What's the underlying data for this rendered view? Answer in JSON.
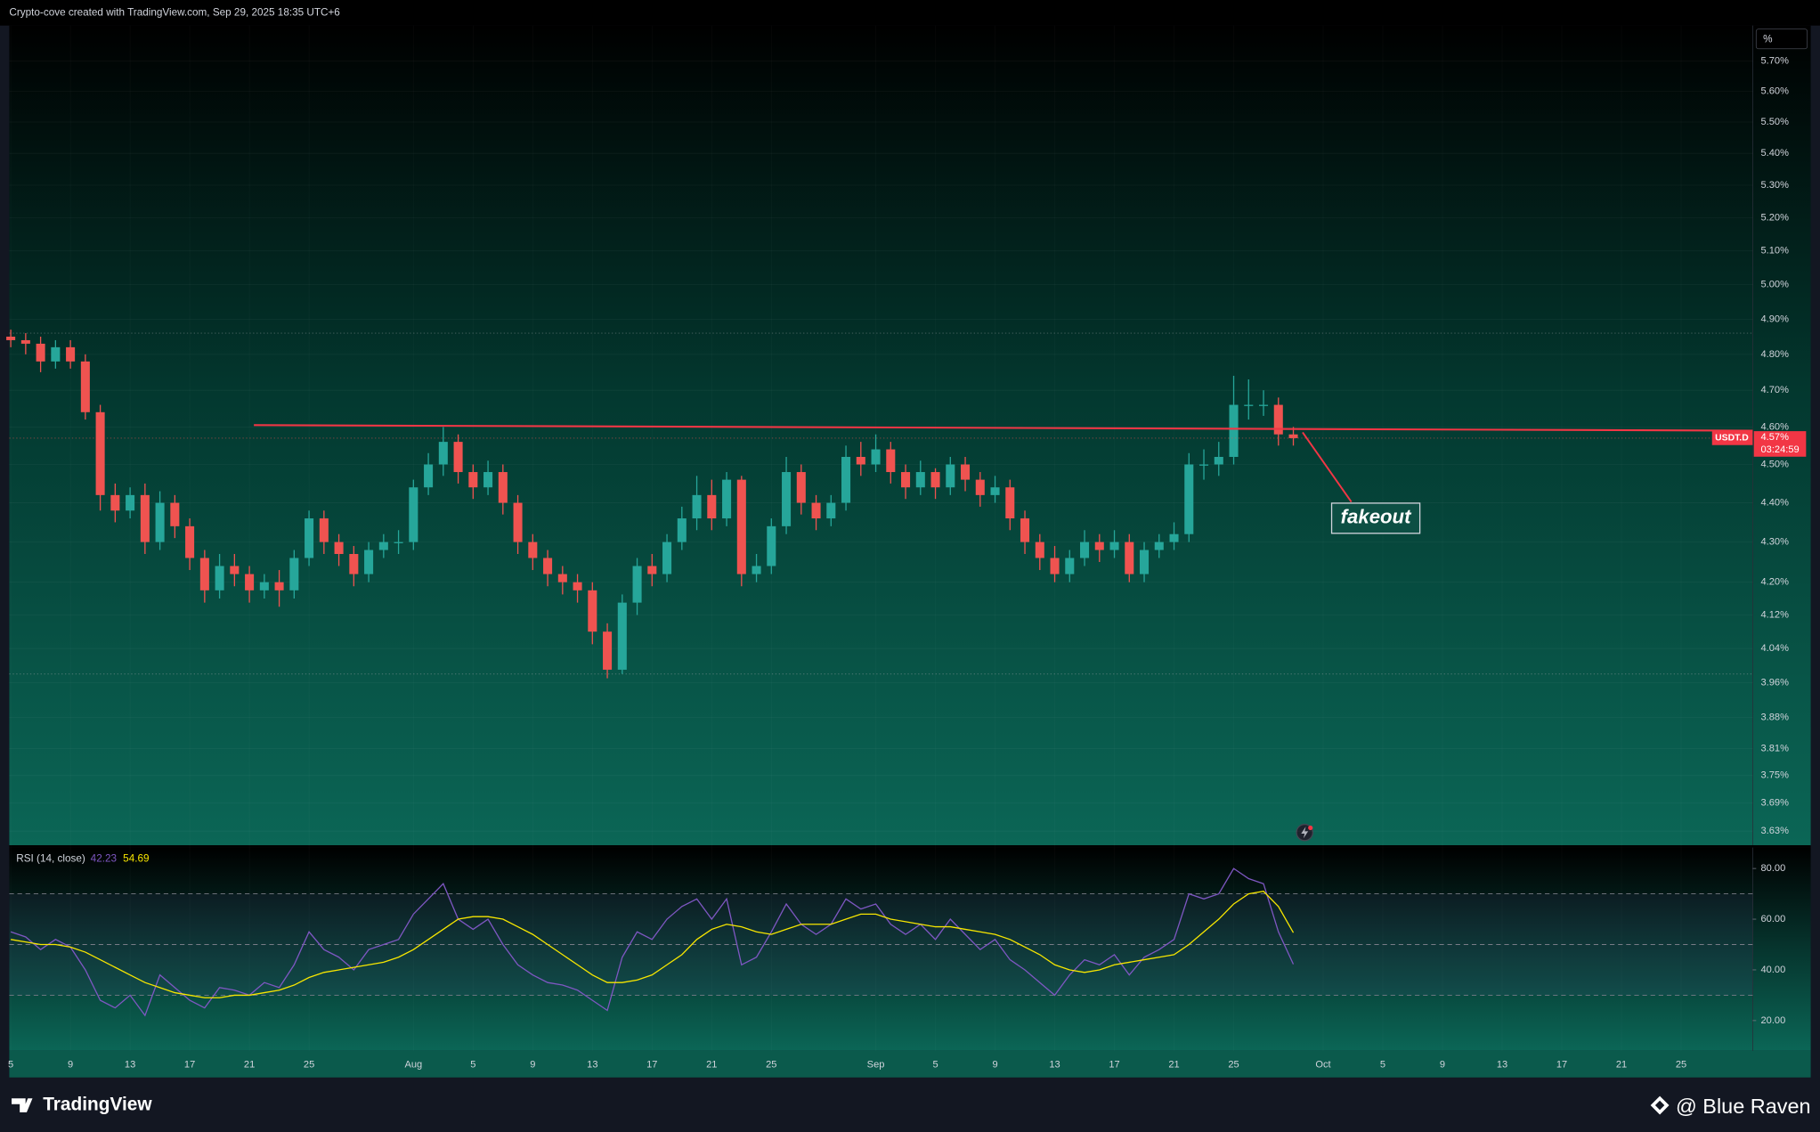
{
  "header": "Crypto-cove created with TradingView.com, Sep 29, 2025 18:35 UTC+6",
  "brand": "TradingView",
  "watermark": "@ Blue Raven",
  "chart_data": [
    {
      "type": "candlestick",
      "unit": "%",
      "symbol": "USDT.D",
      "last_price": {
        "value": 4.57,
        "label": "4.57%"
      },
      "countdown": "03:24:59",
      "annotation": "fakeout",
      "up_color": "#26a69a",
      "down_color": "#ef5350",
      "log_scale": true,
      "grid": true,
      "xlim": [
        -0.1,
        116.8
      ],
      "xticks": [
        {
          "value": 0,
          "label": "5"
        },
        {
          "value": 4,
          "label": "9"
        },
        {
          "value": 8,
          "label": "13"
        },
        {
          "value": 12,
          "label": "17"
        },
        {
          "value": 16,
          "label": "21"
        },
        {
          "value": 20,
          "label": "25"
        },
        {
          "value": 27,
          "label": "Aug"
        },
        {
          "value": 31,
          "label": "5"
        },
        {
          "value": 35,
          "label": "9"
        },
        {
          "value": 39,
          "label": "13"
        },
        {
          "value": 43,
          "label": "17"
        },
        {
          "value": 47,
          "label": "21"
        },
        {
          "value": 51,
          "label": "25"
        },
        {
          "value": 58,
          "label": "Sep"
        },
        {
          "value": 62,
          "label": "5"
        },
        {
          "value": 66,
          "label": "9"
        },
        {
          "value": 70,
          "label": "13"
        },
        {
          "value": 74,
          "label": "17"
        },
        {
          "value": 78,
          "label": "21"
        },
        {
          "value": 82,
          "label": "25"
        },
        {
          "value": 88,
          "label": "Oct"
        },
        {
          "value": 92,
          "label": "5"
        },
        {
          "value": 96,
          "label": "9"
        },
        {
          "value": 100,
          "label": "13"
        },
        {
          "value": 104,
          "label": "17"
        },
        {
          "value": 108,
          "label": "21"
        },
        {
          "value": 112,
          "label": "25"
        }
      ],
      "ylim": [
        3.6,
        5.82
      ],
      "yticks": [
        {
          "value": 3.63,
          "label": "3.63%"
        },
        {
          "value": 3.69,
          "label": "3.69%"
        },
        {
          "value": 3.75,
          "label": "3.75%"
        },
        {
          "value": 3.81,
          "label": "3.81%"
        },
        {
          "value": 3.88,
          "label": "3.88%"
        },
        {
          "value": 3.96,
          "label": "3.96%"
        },
        {
          "value": 4.04,
          "label": "4.04%"
        },
        {
          "value": 4.12,
          "label": "4.12%"
        },
        {
          "value": 4.2,
          "label": "4.20%"
        },
        {
          "value": 4.3,
          "label": "4.30%"
        },
        {
          "value": 4.4,
          "label": "4.40%"
        },
        {
          "value": 4.5,
          "label": "4.50%"
        },
        {
          "value": 4.6,
          "label": "4.60%"
        },
        {
          "value": 4.7,
          "label": "4.70%"
        },
        {
          "value": 4.8,
          "label": "4.80%"
        },
        {
          "value": 4.9,
          "label": "4.90%"
        },
        {
          "value": 5.0,
          "label": "5.00%"
        },
        {
          "value": 5.1,
          "label": "5.10%"
        },
        {
          "value": 5.2,
          "label": "5.20%"
        },
        {
          "value": 5.3,
          "label": "5.30%"
        },
        {
          "value": 5.4,
          "label": "5.40%"
        },
        {
          "value": 5.5,
          "label": "5.50%"
        },
        {
          "value": 5.6,
          "label": "5.60%"
        },
        {
          "value": 5.7,
          "label": "5.70%"
        }
      ],
      "levels": [
        4.86,
        3.98
      ],
      "resistance": {
        "color": "#f23645",
        "x": [
          16.3,
          116.8
        ],
        "y": [
          4.605,
          4.59
        ]
      },
      "open": [
        4.85,
        4.84,
        4.83,
        4.78,
        4.82,
        4.78,
        4.64,
        4.42,
        4.38,
        4.42,
        4.3,
        4.4,
        4.34,
        4.26,
        4.18,
        4.24,
        4.22,
        4.18,
        4.2,
        4.18,
        4.26,
        4.36,
        4.3,
        4.27,
        4.22,
        4.28,
        4.3,
        4.3,
        4.44,
        4.5,
        4.56,
        4.48,
        4.44,
        4.48,
        4.4,
        4.3,
        4.26,
        4.22,
        4.2,
        4.18,
        4.08,
        3.99,
        4.15,
        4.24,
        4.22,
        4.3,
        4.36,
        4.42,
        4.36,
        4.46,
        4.22,
        4.24,
        4.34,
        4.48,
        4.4,
        4.36,
        4.4,
        4.52,
        4.5,
        4.54,
        4.48,
        4.44,
        4.48,
        4.44,
        4.5,
        4.46,
        4.42,
        4.44,
        4.36,
        4.3,
        4.26,
        4.22,
        4.26,
        4.3,
        4.28,
        4.3,
        4.22,
        4.28,
        4.3,
        4.32,
        4.5,
        4.5,
        4.52,
        4.66,
        4.66,
        4.66,
        4.58
      ],
      "high": [
        4.87,
        4.86,
        4.85,
        4.84,
        4.84,
        4.8,
        4.66,
        4.45,
        4.44,
        4.45,
        4.43,
        4.42,
        4.36,
        4.28,
        4.27,
        4.27,
        4.24,
        4.22,
        4.23,
        4.28,
        4.38,
        4.38,
        4.32,
        4.29,
        4.3,
        4.32,
        4.33,
        4.46,
        4.53,
        4.6,
        4.58,
        4.5,
        4.51,
        4.5,
        4.42,
        4.32,
        4.28,
        4.24,
        4.22,
        4.2,
        4.1,
        4.17,
        4.26,
        4.27,
        4.32,
        4.39,
        4.47,
        4.46,
        4.48,
        4.47,
        4.27,
        4.36,
        4.52,
        4.5,
        4.42,
        4.42,
        4.55,
        4.56,
        4.58,
        4.56,
        4.5,
        4.51,
        4.49,
        4.52,
        4.52,
        4.48,
        4.47,
        4.46,
        4.38,
        4.32,
        4.29,
        4.28,
        4.33,
        4.32,
        4.33,
        4.32,
        4.3,
        4.32,
        4.35,
        4.53,
        4.54,
        4.56,
        4.74,
        4.73,
        4.7,
        4.68,
        4.6
      ],
      "low": [
        4.82,
        4.8,
        4.75,
        4.76,
        4.76,
        4.62,
        4.38,
        4.35,
        4.36,
        4.27,
        4.28,
        4.31,
        4.23,
        4.15,
        4.16,
        4.19,
        4.15,
        4.16,
        4.14,
        4.16,
        4.24,
        4.27,
        4.24,
        4.19,
        4.2,
        4.26,
        4.27,
        4.28,
        4.42,
        4.47,
        4.45,
        4.41,
        4.42,
        4.37,
        4.27,
        4.23,
        4.19,
        4.17,
        4.15,
        4.05,
        3.97,
        3.98,
        4.12,
        4.19,
        4.2,
        4.28,
        4.33,
        4.33,
        4.34,
        4.19,
        4.2,
        4.22,
        4.32,
        4.37,
        4.33,
        4.34,
        4.38,
        4.47,
        4.48,
        4.45,
        4.41,
        4.42,
        4.41,
        4.42,
        4.43,
        4.39,
        4.4,
        4.33,
        4.27,
        4.23,
        4.2,
        4.2,
        4.24,
        4.25,
        4.26,
        4.2,
        4.2,
        4.26,
        4.28,
        4.3,
        4.46,
        4.47,
        4.5,
        4.62,
        4.63,
        4.55,
        4.55
      ],
      "close": [
        4.84,
        4.83,
        4.78,
        4.82,
        4.78,
        4.64,
        4.42,
        4.38,
        4.42,
        4.3,
        4.4,
        4.34,
        4.26,
        4.18,
        4.24,
        4.22,
        4.18,
        4.2,
        4.18,
        4.26,
        4.36,
        4.3,
        4.27,
        4.22,
        4.28,
        4.3,
        4.3,
        4.44,
        4.5,
        4.56,
        4.48,
        4.44,
        4.48,
        4.4,
        4.3,
        4.26,
        4.22,
        4.2,
        4.18,
        4.08,
        3.99,
        4.15,
        4.24,
        4.22,
        4.3,
        4.36,
        4.42,
        4.36,
        4.46,
        4.22,
        4.24,
        4.34,
        4.48,
        4.4,
        4.36,
        4.4,
        4.52,
        4.5,
        4.54,
        4.48,
        4.44,
        4.48,
        4.44,
        4.5,
        4.46,
        4.42,
        4.44,
        4.36,
        4.3,
        4.26,
        4.22,
        4.26,
        4.3,
        4.28,
        4.3,
        4.22,
        4.28,
        4.3,
        4.32,
        4.5,
        4.5,
        4.52,
        4.66,
        4.66,
        4.66,
        4.58,
        4.57
      ]
    },
    {
      "type": "line",
      "title": "RSI (14, close)",
      "ylim": [
        8.1,
        87.8
      ],
      "yticks": [
        {
          "value": 20,
          "label": "20.00"
        },
        {
          "value": 40,
          "label": "40.00"
        },
        {
          "value": 60,
          "label": "60.00"
        },
        {
          "value": 80,
          "label": "80.00"
        }
      ],
      "levels": [
        30,
        50,
        70
      ],
      "band_color": "#7e57c2",
      "series": [
        {
          "color": "#7e57c2",
          "values": [
            55,
            53,
            48,
            52,
            49,
            40,
            28,
            25,
            30,
            22,
            38,
            33,
            28,
            25,
            33,
            32,
            30,
            35,
            33,
            42,
            55,
            48,
            45,
            40,
            48,
            50,
            52,
            62,
            68,
            74,
            60,
            56,
            60,
            50,
            42,
            38,
            35,
            34,
            32,
            28,
            24,
            45,
            55,
            52,
            60,
            65,
            68,
            60,
            68,
            42,
            45,
            55,
            66,
            58,
            54,
            58,
            68,
            64,
            66,
            58,
            54,
            58,
            52,
            60,
            54,
            48,
            52,
            44,
            40,
            35,
            30,
            38,
            44,
            42,
            46,
            38,
            45,
            48,
            52,
            70,
            68,
            70,
            80,
            76,
            74,
            55,
            42.23
          ]
        },
        {
          "color": "#f7e600",
          "values": [
            52,
            51,
            50,
            50,
            49,
            47,
            44,
            41,
            38,
            35,
            33,
            31,
            30,
            29,
            29,
            30,
            30,
            31,
            32,
            34,
            37,
            39,
            40,
            41,
            42,
            43,
            45,
            48,
            52,
            56,
            60,
            61,
            61,
            60,
            57,
            54,
            50,
            46,
            42,
            38,
            35,
            35,
            36,
            38,
            42,
            46,
            52,
            56,
            58,
            57,
            55,
            54,
            56,
            58,
            58,
            58,
            60,
            62,
            62,
            60,
            59,
            58,
            57,
            57,
            56,
            55,
            54,
            52,
            49,
            46,
            42,
            40,
            39,
            40,
            42,
            43,
            44,
            45,
            46,
            50,
            55,
            60,
            66,
            70,
            71,
            65,
            54.69
          ]
        }
      ]
    }
  ]
}
